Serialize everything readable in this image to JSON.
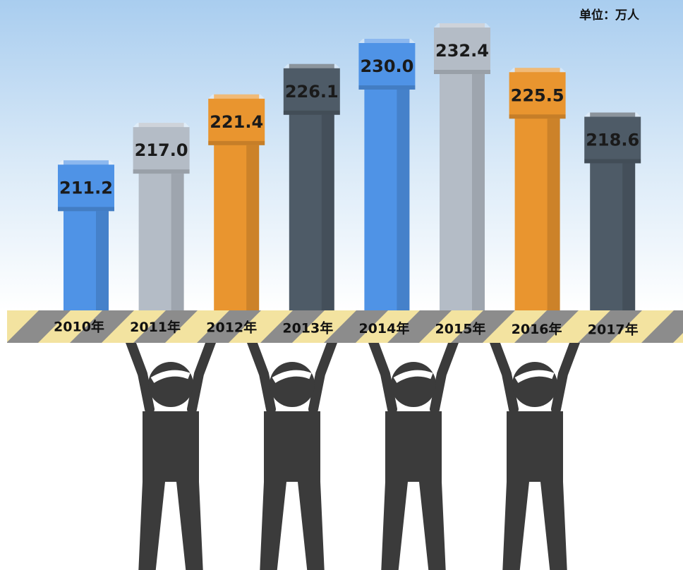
{
  "chart_data": {
    "type": "bar",
    "unit": "单位：万人",
    "categories": [
      "2010年",
      "2011年",
      "2012年",
      "2013年",
      "2014年",
      "2015年",
      "2016年",
      "2017年"
    ],
    "values": [
      211.2,
      217.0,
      221.4,
      226.1,
      230.0,
      232.4,
      225.5,
      218.6
    ],
    "value_labels": [
      "211.2",
      "217.0",
      "221.4",
      "226.1",
      "230.0",
      "232.4",
      "225.5",
      "218.6"
    ],
    "colors": [
      "#4f93e6",
      "#b4bcc6",
      "#e9952f",
      "#4e5b67",
      "#4f93e6",
      "#b4bcc6",
      "#e9952f",
      "#4e5b67"
    ],
    "ylim": [
      188,
      236
    ]
  }
}
